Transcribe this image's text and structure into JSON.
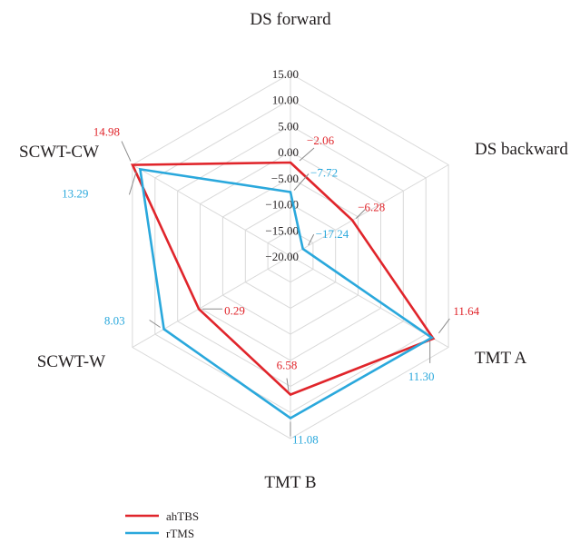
{
  "chart_data": {
    "type": "radar",
    "axes": [
      "DS forward",
      "DS backward",
      "TMT A",
      "TMT B",
      "SCWT-W",
      "SCWT-CW"
    ],
    "radial_range": [
      -20,
      15
    ],
    "radial_ticks": [
      15,
      10,
      5,
      0,
      -5,
      -10,
      -15,
      -20
    ],
    "radial_tick_labels": [
      "15.00",
      "10.00",
      "5.00",
      "0.00",
      "−5.00",
      "−10.00",
      "−15.00",
      "−20.00"
    ],
    "grid": true,
    "legend_position": "bottom-left",
    "series": [
      {
        "name": "ahTBS",
        "color": "#e0252b",
        "values": [
          -2.06,
          -6.28,
          11.64,
          6.58,
          0.29,
          14.98
        ],
        "labels": [
          "−2.06",
          "−6.28",
          "11.64",
          "6.58",
          "0.29",
          "14.98"
        ]
      },
      {
        "name": "rTMS",
        "color": "#2aa8dc",
        "values": [
          -7.72,
          -17.24,
          11.3,
          11.08,
          8.03,
          13.29
        ],
        "labels": [
          "−7.72",
          "−17.24",
          "11.30",
          "11.08",
          "8.03",
          "13.29"
        ]
      }
    ]
  }
}
